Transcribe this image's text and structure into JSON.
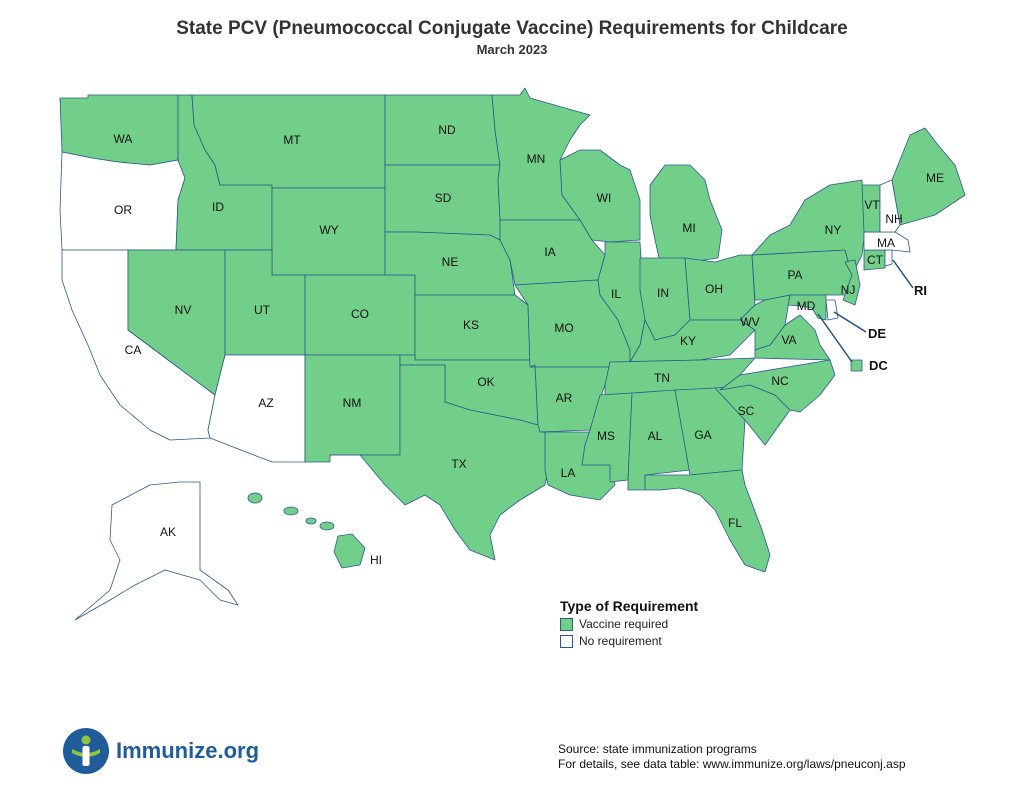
{
  "title": "State PCV (Pneumococcal Conjugate Vaccine) Requirements for Childcare",
  "subtitle": "March 2023",
  "colors": {
    "vaccine_required": "#72cf8a",
    "no_requirement": "#ffffff",
    "border": "#2b5a8a",
    "logo_blue": "#1f5c99",
    "logo_green": "#8dc63f"
  },
  "legend": {
    "title": "Type of Requirement",
    "items": [
      {
        "label": "Vaccine required",
        "key": "vaccine_required"
      },
      {
        "label": "No requirement",
        "key": "no_requirement"
      }
    ]
  },
  "states": {
    "WA": "vaccine_required",
    "OR": "no_requirement",
    "CA": "no_requirement",
    "ID": "vaccine_required",
    "NV": "vaccine_required",
    "MT": "vaccine_required",
    "WY": "vaccine_required",
    "UT": "vaccine_required",
    "AZ": "no_requirement",
    "CO": "vaccine_required",
    "NM": "vaccine_required",
    "ND": "vaccine_required",
    "SD": "vaccine_required",
    "NE": "vaccine_required",
    "KS": "vaccine_required",
    "OK": "vaccine_required",
    "TX": "vaccine_required",
    "MN": "vaccine_required",
    "IA": "vaccine_required",
    "MO": "vaccine_required",
    "AR": "vaccine_required",
    "LA": "vaccine_required",
    "WI": "vaccine_required",
    "IL": "vaccine_required",
    "MI": "vaccine_required",
    "IN": "vaccine_required",
    "OH": "vaccine_required",
    "KY": "vaccine_required",
    "TN": "vaccine_required",
    "MS": "vaccine_required",
    "AL": "vaccine_required",
    "GA": "vaccine_required",
    "FL": "vaccine_required",
    "SC": "vaccine_required",
    "NC": "vaccine_required",
    "VA": "vaccine_required",
    "WV": "vaccine_required",
    "PA": "vaccine_required",
    "NY": "vaccine_required",
    "NJ": "vaccine_required",
    "DE": "no_requirement",
    "MD": "vaccine_required",
    "DC": "vaccine_required",
    "CT": "vaccine_required",
    "RI": "no_requirement",
    "MA": "no_requirement",
    "VT": "vaccine_required",
    "NH": "no_requirement",
    "ME": "vaccine_required",
    "AK": "no_requirement",
    "HI": "vaccine_required"
  },
  "callouts": {
    "RI": "RI",
    "DE": "DE",
    "DC": "DC"
  },
  "logo_text": "Immunize.org",
  "source_line1": "Source: state immunization programs",
  "source_line2": "For details, see data table: www.immunize.org/laws/pneuconj.asp"
}
